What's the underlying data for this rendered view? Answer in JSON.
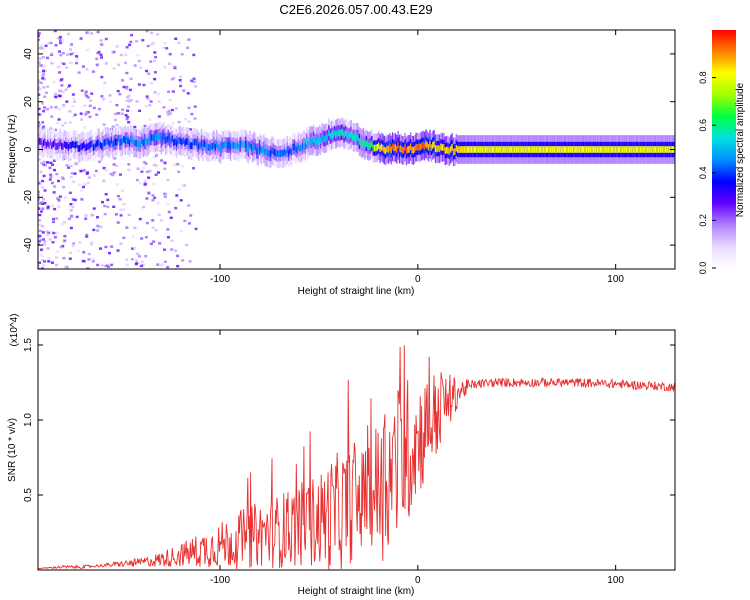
{
  "title": "C2E6.2026.057.00.43.E29",
  "chart_data": [
    {
      "type": "heatmap",
      "name": "spectrogram",
      "xlabel": "Height of straight line (km)",
      "ylabel": "Frequency (Hz)",
      "xlim": [
        -192,
        130
      ],
      "ylim": [
        -50,
        50
      ],
      "xticks": [
        -100,
        0,
        100
      ],
      "yticks": [
        -40,
        -20,
        0,
        20,
        40
      ],
      "colorbar": {
        "label": "Normalized spectral amplitude",
        "range": [
          0,
          1
        ],
        "ticks": [
          0.0,
          0.2,
          0.4,
          0.6,
          0.8
        ],
        "tick_labels": [
          "0.0",
          "0.2",
          "0.4",
          "0.6",
          "0.8"
        ],
        "colormap": [
          "#ffffff",
          "#e8d8ff",
          "#b080ff",
          "#6000ff",
          "#0000ff",
          "#0090ff",
          "#00e0e0",
          "#00ff40",
          "#a0ff00",
          "#ffff00",
          "#ff8000",
          "#ff0000"
        ]
      },
      "ridge": {
        "heights_km": [
          -192,
          -180,
          -170,
          -160,
          -150,
          -140,
          -130,
          -120,
          -110,
          -100,
          -90,
          -80,
          -70,
          -60,
          -55,
          -50,
          -45,
          -40,
          -35,
          -30,
          -25,
          -20,
          -15,
          -10,
          -5,
          0,
          5,
          10,
          15,
          20,
          30,
          50,
          80,
          100,
          130
        ],
        "frequency_hz": [
          3,
          2,
          1,
          2,
          4,
          3,
          5,
          3,
          2,
          1,
          2,
          0,
          -2,
          1,
          3,
          4,
          6,
          7,
          6,
          4,
          2,
          1,
          0,
          1,
          0,
          1,
          2,
          1,
          0,
          0,
          0,
          0,
          0,
          0,
          0
        ],
        "amplitude": [
          0.25,
          0.3,
          0.35,
          0.4,
          0.4,
          0.45,
          0.45,
          0.4,
          0.4,
          0.45,
          0.45,
          0.45,
          0.4,
          0.45,
          0.5,
          0.5,
          0.55,
          0.55,
          0.55,
          0.55,
          0.6,
          0.8,
          0.9,
          0.9,
          0.9,
          0.9,
          0.9,
          0.85,
          0.85,
          0.85,
          0.8,
          0.8,
          0.82,
          0.8,
          0.8
        ]
      }
    },
    {
      "type": "line",
      "name": "snr",
      "xlabel": "Height of straight line (km)",
      "ylabel": "SNR (10 * v/v)",
      "y_multiplier": "(x10^4)",
      "xlim": [
        -192,
        130
      ],
      "ylim": [
        0,
        1.6
      ],
      "xticks": [
        -100,
        0,
        100
      ],
      "yticks": [
        0.5,
        1.0,
        1.5
      ],
      "ytick_labels": [
        "0.5",
        "1.0",
        "1.5"
      ],
      "series": [
        {
          "name": "SNR",
          "color": "#e83030",
          "x": [
            -192,
            -180,
            -170,
            -160,
            -150,
            -140,
            -130,
            -120,
            -110,
            -100,
            -90,
            -80,
            -70,
            -60,
            -50,
            -45,
            -40,
            -35,
            -30,
            -25,
            -20,
            -15,
            -10,
            -5,
            0,
            5,
            10,
            15,
            20,
            25,
            30,
            40,
            60,
            80,
            100,
            115,
            130
          ],
          "y": [
            0.01,
            0.02,
            0.02,
            0.03,
            0.04,
            0.05,
            0.07,
            0.1,
            0.13,
            0.17,
            0.2,
            0.24,
            0.26,
            0.3,
            0.33,
            0.36,
            0.39,
            0.43,
            0.46,
            0.5,
            0.55,
            0.62,
            0.7,
            0.8,
            0.88,
            0.96,
            1.05,
            1.12,
            1.18,
            1.22,
            1.24,
            1.25,
            1.25,
            1.25,
            1.24,
            1.23,
            1.22
          ],
          "spread": [
            0.0,
            0.01,
            0.01,
            0.01,
            0.02,
            0.03,
            0.05,
            0.08,
            0.12,
            0.15,
            0.2,
            0.22,
            0.25,
            0.28,
            0.32,
            0.38,
            0.4,
            0.4,
            0.36,
            0.3,
            0.5,
            0.55,
            0.55,
            0.5,
            0.4,
            0.35,
            0.3,
            0.2,
            0.1,
            0.05,
            0.03,
            0.03,
            0.03,
            0.03,
            0.03,
            0.03,
            0.03
          ]
        }
      ]
    }
  ]
}
